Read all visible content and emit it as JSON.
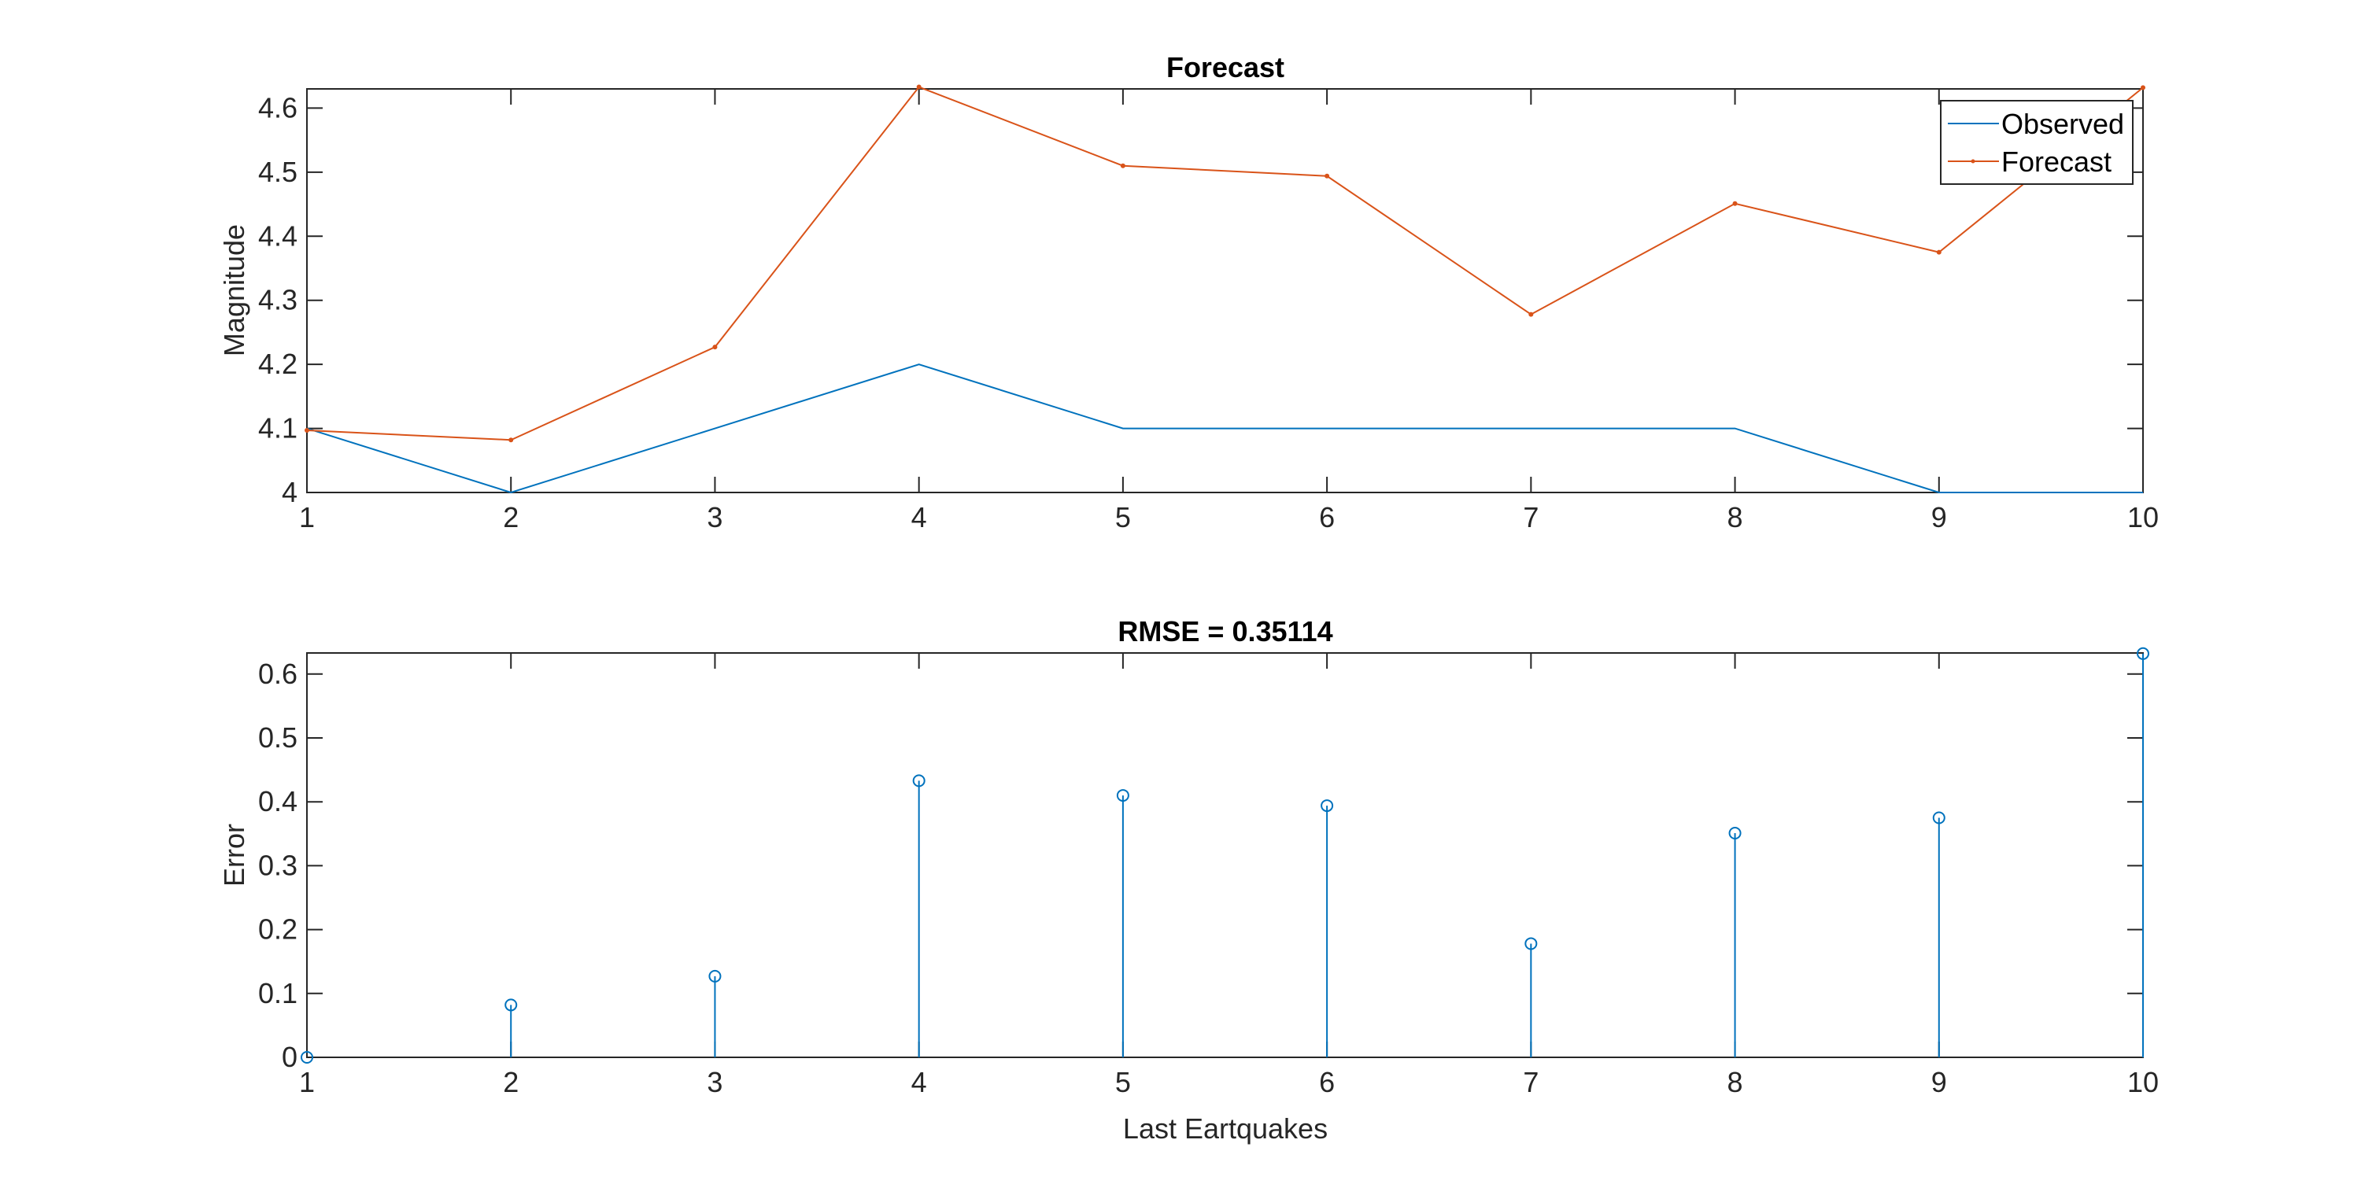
{
  "figure": {
    "colors": {
      "observed": "#0072BD",
      "forecast": "#D95319",
      "axis": "#262626"
    }
  },
  "chart_data": [
    {
      "type": "line",
      "title": "Forecast",
      "xlabel": "",
      "ylabel": "Magnitude",
      "x": [
        1,
        2,
        3,
        4,
        5,
        6,
        7,
        8,
        9,
        10
      ],
      "xlim": [
        1,
        10
      ],
      "ylim": [
        4,
        4.63
      ],
      "xticks": [
        "1",
        "2",
        "3",
        "4",
        "5",
        "6",
        "7",
        "8",
        "9",
        "10"
      ],
      "yticks": [
        "4",
        "4.1",
        "4.2",
        "4.3",
        "4.4",
        "4.5",
        "4.6"
      ],
      "series": [
        {
          "name": "Observed",
          "values": [
            4.1,
            4.0,
            4.1,
            4.2,
            4.1,
            4.1,
            4.1,
            4.1,
            4.0,
            4.0
          ],
          "marker": "none",
          "color": "#0072BD"
        },
        {
          "name": "Forecast",
          "values": [
            4.097,
            4.082,
            4.227,
            4.633,
            4.51,
            4.494,
            4.278,
            4.451,
            4.375,
            4.632
          ],
          "marker": "dot",
          "color": "#D95319"
        }
      ],
      "legend": {
        "placement": "top-right",
        "entries": [
          "Observed",
          "Forecast"
        ]
      },
      "grid": false
    },
    {
      "type": "stem",
      "title": "RMSE = 0.35114",
      "xlabel": "Last Eartquakes",
      "ylabel": "Error",
      "x": [
        1,
        2,
        3,
        4,
        5,
        6,
        7,
        8,
        9,
        10
      ],
      "xlim": [
        1,
        10
      ],
      "ylim": [
        0,
        0.633
      ],
      "xticks": [
        "1",
        "2",
        "3",
        "4",
        "5",
        "6",
        "7",
        "8",
        "9",
        "10"
      ],
      "yticks": [
        "0",
        "0.1",
        "0.2",
        "0.3",
        "0.4",
        "0.5",
        "0.6"
      ],
      "series": [
        {
          "name": "",
          "values": [
            0,
            0.082,
            0.127,
            0.433,
            0.41,
            0.394,
            0.178,
            0.351,
            0.375,
            0.632
          ],
          "marker": "circle",
          "color": "#0072BD"
        }
      ],
      "grid": false
    }
  ]
}
